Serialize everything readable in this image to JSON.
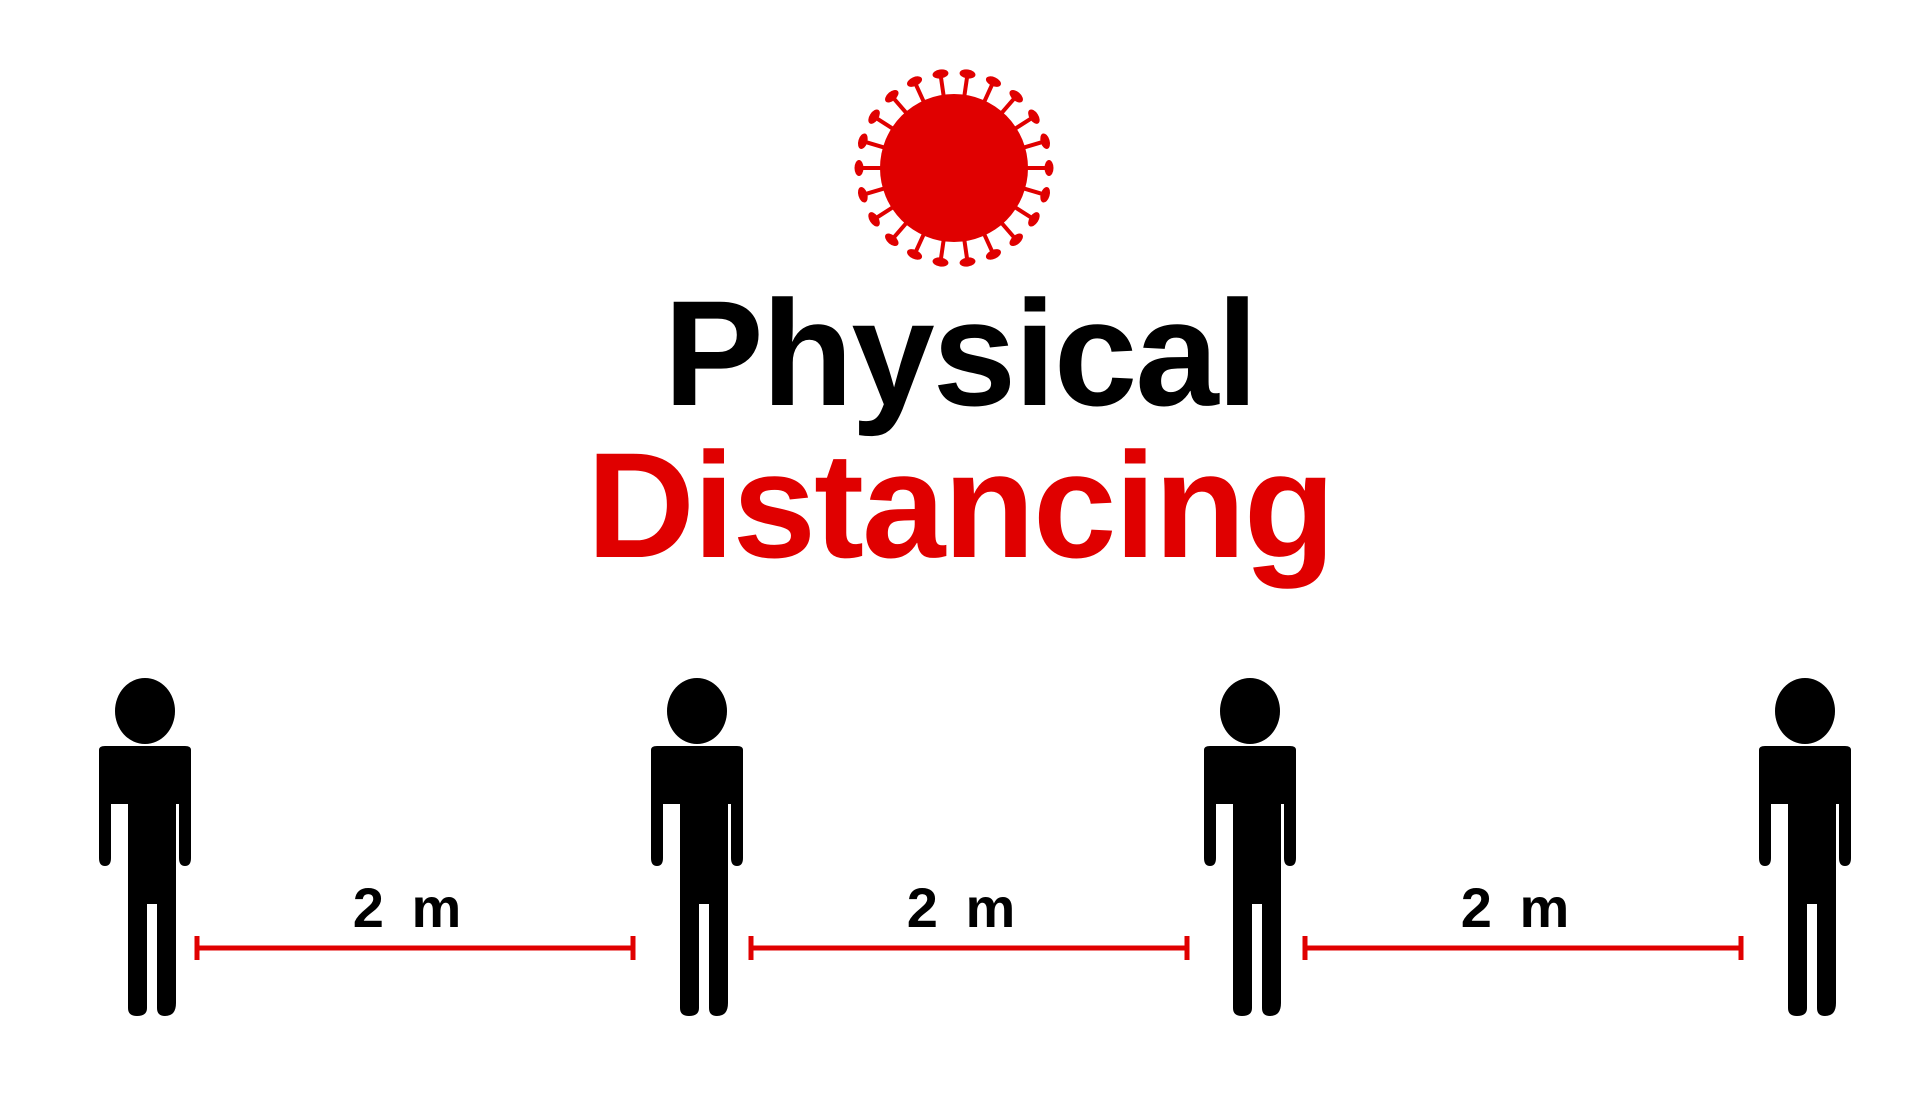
{
  "title": {
    "line1": "Physical",
    "line2": "Distancing"
  },
  "distances": [
    {
      "label": "2 m"
    },
    {
      "label": "2 m"
    },
    {
      "label": "2 m"
    }
  ],
  "colors": {
    "accent": "#e00000",
    "text": "#000000",
    "background": "#ffffff"
  },
  "icons": {
    "virus": "virus-icon",
    "person": "person-icon"
  }
}
